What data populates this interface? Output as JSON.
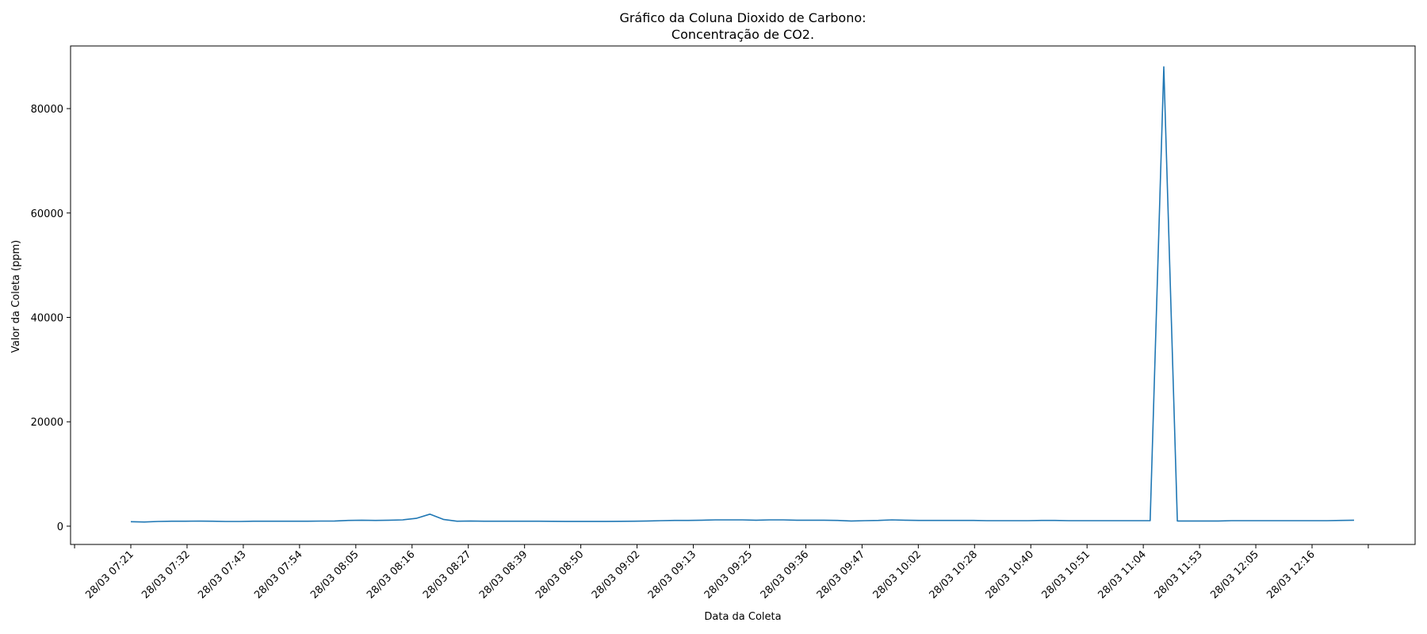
{
  "chart_data": {
    "type": "line",
    "title_line1": "Gráfico da Coluna Dioxido de Carbono:",
    "title_line2": "Concentração de CO2.",
    "xlabel": "Data da Coleta",
    "ylabel": "Valor da Coleta (ppm)",
    "ylim": [
      -3500,
      92000
    ],
    "yticks": [
      0,
      20000,
      40000,
      60000,
      80000
    ],
    "grid": false,
    "line_color": "#1f77b4",
    "x_tick_labels": [
      "28/03 07:21",
      "28/03 07:32",
      "28/03 07:43",
      "28/03 07:54",
      "28/03 08:05",
      "28/03 08:16",
      "28/03 08:27",
      "28/03 08:39",
      "28/03 08:50",
      "28/03 09:02",
      "28/03 09:13",
      "28/03 09:25",
      "28/03 09:36",
      "28/03 09:47",
      "28/03 10:02",
      "28/03 10:28",
      "28/03 10:40",
      "28/03 10:51",
      "28/03 11:04",
      "28/03 11:53",
      "28/03 12:05",
      "28/03 12:16"
    ],
    "series": [
      {
        "values": [
          850,
          800,
          900,
          950,
          950,
          980,
          950,
          900,
          900,
          950,
          950,
          950,
          950,
          950,
          980,
          1000,
          1100,
          1150,
          1100,
          1150,
          1200,
          1500,
          2300,
          1300,
          950,
          1000,
          950,
          950,
          950,
          950,
          950,
          930,
          920,
          920,
          920,
          920,
          930,
          950,
          1000,
          1050,
          1100,
          1100,
          1150,
          1200,
          1200,
          1200,
          1150,
          1200,
          1200,
          1150,
          1150,
          1150,
          1100,
          1000,
          1050,
          1100,
          1200,
          1150,
          1100,
          1100,
          1100,
          1100,
          1100,
          1050,
          1050,
          1050,
          1050,
          1100,
          1100,
          1050,
          1050,
          1050,
          1050,
          1050,
          1050,
          1050,
          88000,
          1000,
          1000,
          1000,
          1000,
          1050,
          1050,
          1050,
          1050,
          1050,
          1050,
          1050,
          1050,
          1100,
          1150
        ]
      }
    ]
  }
}
